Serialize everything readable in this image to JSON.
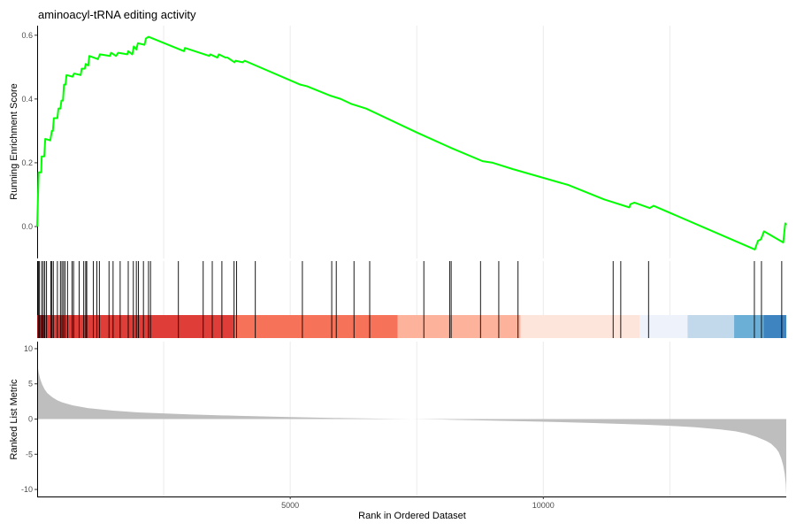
{
  "chart_data": {
    "type": "line",
    "title": "aminoacyl-tRNA editing activity",
    "xlabel": "Rank in Ordered Dataset",
    "x_ticks": [
      5000,
      10000
    ],
    "xlim": [
      0,
      14800
    ],
    "enrichment_panel": {
      "ylabel": "Running Enrichment Score",
      "ylim": [
        -0.1,
        0.63
      ],
      "y_ticks": [
        0.0,
        0.2,
        0.4,
        0.6
      ],
      "line_color": "#00ff00",
      "points": [
        [
          0,
          0.0
        ],
        [
          30,
          0.17
        ],
        [
          80,
          0.17
        ],
        [
          90,
          0.22
        ],
        [
          140,
          0.22
        ],
        [
          160,
          0.275
        ],
        [
          260,
          0.27
        ],
        [
          290,
          0.3
        ],
        [
          310,
          0.3
        ],
        [
          330,
          0.34
        ],
        [
          400,
          0.34
        ],
        [
          420,
          0.37
        ],
        [
          460,
          0.37
        ],
        [
          480,
          0.395
        ],
        [
          510,
          0.395
        ],
        [
          530,
          0.445
        ],
        [
          560,
          0.445
        ],
        [
          580,
          0.475
        ],
        [
          700,
          0.47
        ],
        [
          730,
          0.48
        ],
        [
          860,
          0.475
        ],
        [
          880,
          0.495
        ],
        [
          940,
          0.495
        ],
        [
          960,
          0.51
        ],
        [
          1010,
          0.505
        ],
        [
          1030,
          0.535
        ],
        [
          1200,
          0.525
        ],
        [
          1240,
          0.54
        ],
        [
          1440,
          0.535
        ],
        [
          1460,
          0.545
        ],
        [
          1560,
          0.535
        ],
        [
          1600,
          0.545
        ],
        [
          1780,
          0.54
        ],
        [
          1800,
          0.55
        ],
        [
          1880,
          0.54
        ],
        [
          1910,
          0.565
        ],
        [
          1960,
          0.555
        ],
        [
          1990,
          0.575
        ],
        [
          2120,
          0.57
        ],
        [
          2150,
          0.59
        ],
        [
          2200,
          0.595
        ],
        [
          2900,
          0.55
        ],
        [
          2920,
          0.56
        ],
        [
          3400,
          0.535
        ],
        [
          3420,
          0.54
        ],
        [
          3560,
          0.53
        ],
        [
          3590,
          0.54
        ],
        [
          3720,
          0.53
        ],
        [
          3760,
          0.53
        ],
        [
          3900,
          0.515
        ],
        [
          3920,
          0.52
        ],
        [
          4060,
          0.515
        ],
        [
          4100,
          0.52
        ],
        [
          5200,
          0.445
        ],
        [
          5330,
          0.44
        ],
        [
          5800,
          0.41
        ],
        [
          6000,
          0.4
        ],
        [
          6200,
          0.385
        ],
        [
          6500,
          0.37
        ],
        [
          7500,
          0.295
        ],
        [
          8200,
          0.245
        ],
        [
          8800,
          0.205
        ],
        [
          9000,
          0.2
        ],
        [
          9400,
          0.18
        ],
        [
          10500,
          0.13
        ],
        [
          11200,
          0.085
        ],
        [
          11700,
          0.06
        ],
        [
          11720,
          0.07
        ],
        [
          11800,
          0.075
        ],
        [
          12100,
          0.058
        ],
        [
          12180,
          0.065
        ],
        [
          14180,
          -0.072
        ],
        [
          14240,
          -0.045
        ],
        [
          14300,
          -0.04
        ],
        [
          14360,
          -0.015
        ],
        [
          14740,
          -0.05
        ],
        [
          14780,
          0.01
        ],
        [
          14800,
          0.005
        ]
      ]
    },
    "hits_panel": {
      "positions": [
        25,
        45,
        90,
        120,
        150,
        185,
        270,
        290,
        320,
        400,
        460,
        490,
        520,
        550,
        600,
        690,
        720,
        830,
        920,
        960,
        980,
        1110,
        1180,
        1230,
        1420,
        1500,
        1640,
        1800,
        1900,
        1960,
        2000,
        2100,
        2200,
        2240,
        2790,
        3280,
        3460,
        3650,
        3890,
        3940,
        4310,
        5240,
        5820,
        5910,
        6260,
        6570,
        7640,
        8150,
        8180,
        8760,
        9120,
        9500,
        11380,
        11530,
        12080,
        14170,
        14310,
        14710
      ],
      "color_bands": [
        {
          "x0": 0,
          "x1": 160,
          "color": "#b11b1f"
        },
        {
          "x0": 160,
          "x1": 3880,
          "color": "#df3d37"
        },
        {
          "x0": 3880,
          "x1": 7120,
          "color": "#f6735a"
        },
        {
          "x0": 7120,
          "x1": 9550,
          "color": "#fcb29b"
        },
        {
          "x0": 9550,
          "x1": 11900,
          "color": "#fee5db"
        },
        {
          "x0": 11900,
          "x1": 12850,
          "color": "#eef2fb"
        },
        {
          "x0": 12850,
          "x1": 13770,
          "color": "#c1d9ea"
        },
        {
          "x0": 13770,
          "x1": 14350,
          "color": "#6baed6"
        },
        {
          "x0": 14350,
          "x1": 14800,
          "color": "#3d84c0"
        }
      ]
    },
    "ranked_panel": {
      "ylabel": "Ranked List Metric",
      "ylim": [
        -11,
        11
      ],
      "y_ticks": [
        10,
        5,
        0,
        -5,
        -10
      ],
      "fill_color": "#bebebe",
      "profile": [
        [
          0,
          8.0
        ],
        [
          30,
          6.6
        ],
        [
          60,
          5.7
        ],
        [
          100,
          4.9
        ],
        [
          150,
          4.2
        ],
        [
          200,
          3.7
        ],
        [
          300,
          3.1
        ],
        [
          400,
          2.65
        ],
        [
          500,
          2.35
        ],
        [
          700,
          1.95
        ],
        [
          1000,
          1.55
        ],
        [
          1500,
          1.2
        ],
        [
          2000,
          0.95
        ],
        [
          2500,
          0.8
        ],
        [
          3000,
          0.66
        ],
        [
          4000,
          0.45
        ],
        [
          5000,
          0.28
        ],
        [
          6000,
          0.14
        ],
        [
          7000,
          0.03
        ],
        [
          7400,
          0.0
        ],
        [
          8000,
          -0.07
        ],
        [
          9000,
          -0.22
        ],
        [
          10000,
          -0.37
        ],
        [
          11000,
          -0.56
        ],
        [
          12000,
          -0.8
        ],
        [
          12500,
          -0.96
        ],
        [
          13000,
          -1.17
        ],
        [
          13500,
          -1.48
        ],
        [
          13800,
          -1.75
        ],
        [
          14000,
          -2.05
        ],
        [
          14200,
          -2.5
        ],
        [
          14400,
          -3.1
        ],
        [
          14500,
          -3.5
        ],
        [
          14600,
          -4.2
        ],
        [
          14650,
          -4.7
        ],
        [
          14700,
          -5.6
        ],
        [
          14740,
          -6.6
        ],
        [
          14770,
          -7.8
        ],
        [
          14790,
          -9.2
        ],
        [
          14800,
          -10.8
        ]
      ]
    }
  }
}
